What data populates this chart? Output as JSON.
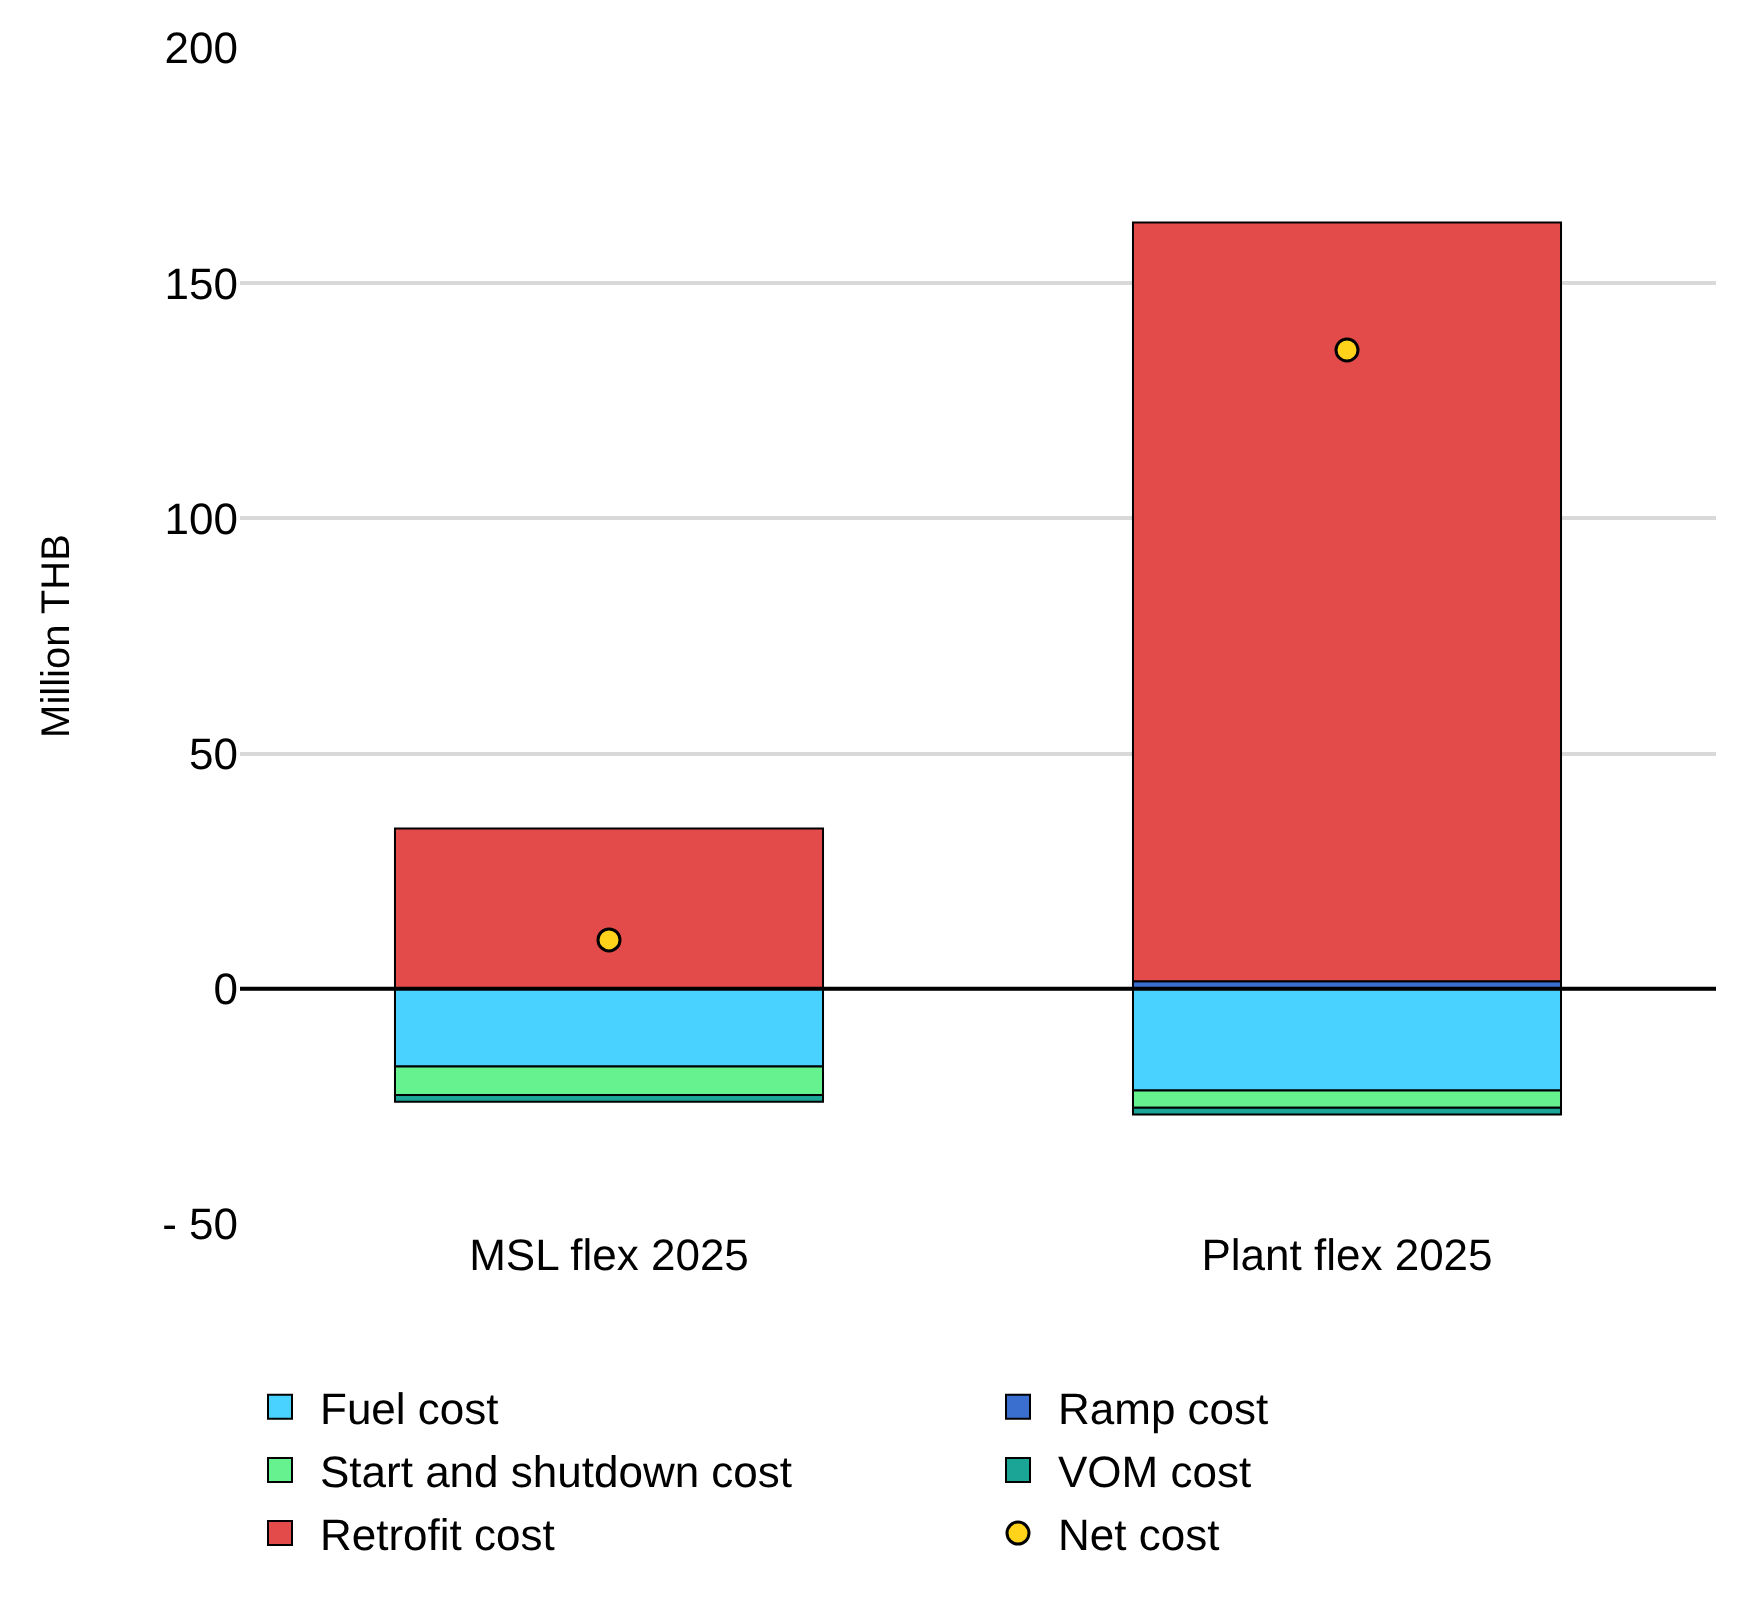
{
  "chart_data": {
    "type": "bar",
    "ylabel": "Million THB",
    "stacked": true,
    "categories": [
      "MSL flex 2025",
      "Plant flex 2025"
    ],
    "series": [
      {
        "name": "Fuel cost",
        "color": "#49d2ff",
        "values": [
          -16.5,
          -21.6
        ]
      },
      {
        "name": "Ramp cost",
        "color": "#3a6fd0",
        "values": [
          null,
          1.6
        ]
      },
      {
        "name": "Start and shutdown cost",
        "color": "#66f28f",
        "values": [
          -6.1,
          -3.7
        ]
      },
      {
        "name": "VOM cost",
        "color": "#1aa596",
        "values": [
          -1.4,
          -1.4
        ]
      },
      {
        "name": "Retrofit cost",
        "color": "#e24b4a",
        "values": [
          34.1,
          161.3
        ]
      },
      {
        "name": "Net cost",
        "color": "#ffd31a",
        "type": "scatter",
        "values": [
          10.4,
          135.8
        ]
      }
    ],
    "ylim": [
      -50,
      200
    ],
    "yticks": [
      {
        "value": -50,
        "label": "- 50"
      },
      0,
      50,
      100,
      150,
      200
    ],
    "ref_lines": [
      {
        "axis": "y",
        "value": 0,
        "color": "#000000"
      }
    ],
    "grid": "y",
    "legend": "bottom",
    "marker": "circle"
  }
}
